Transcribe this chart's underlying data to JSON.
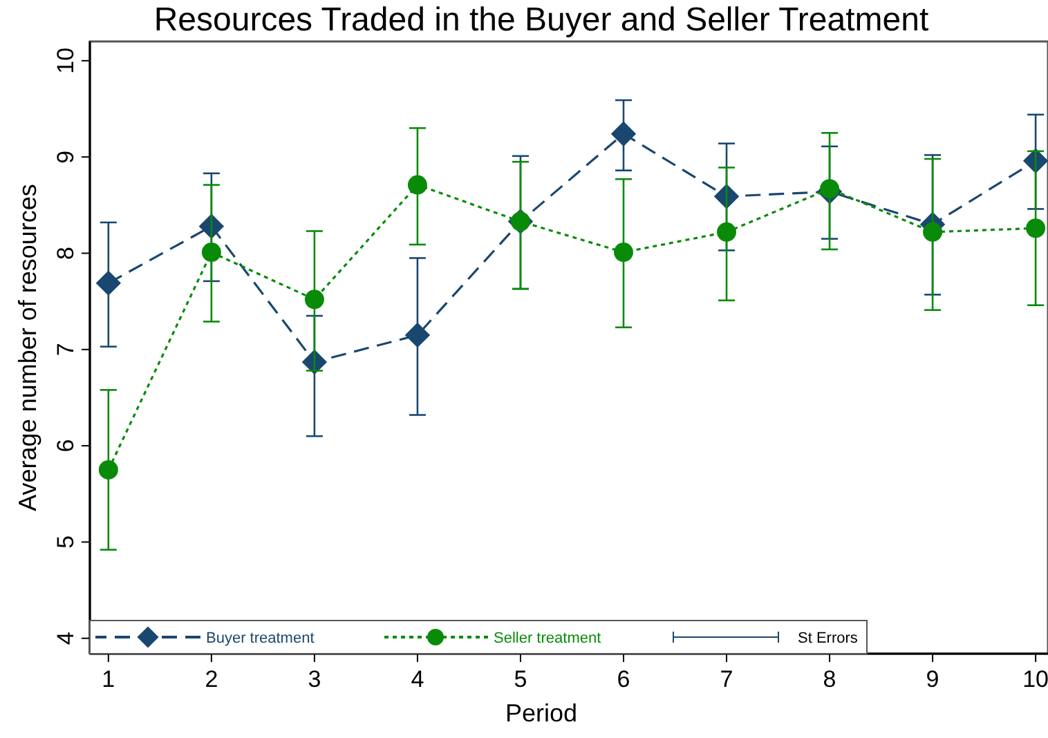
{
  "chart_data": {
    "type": "line",
    "title": "Resources Traded in the Buyer and Seller Treatment",
    "xlabel": "Period",
    "ylabel": "Average number of resources",
    "x": [
      1,
      2,
      3,
      4,
      5,
      6,
      7,
      8,
      9,
      10
    ],
    "series": [
      {
        "name": "Buyer treatment",
        "color": "#1a476f",
        "marker": "diamond",
        "line_style": "dashed",
        "values": [
          7.69,
          8.28,
          6.87,
          7.15,
          8.33,
          9.24,
          8.59,
          8.64,
          8.3,
          8.96
        ],
        "errors": [
          [
            7.03,
            8.32
          ],
          [
            7.71,
            8.83
          ],
          [
            6.1,
            7.35
          ],
          [
            6.32,
            7.95
          ],
          [
            7.63,
            9.01
          ],
          [
            8.86,
            9.59
          ],
          [
            8.03,
            9.14
          ],
          [
            8.15,
            9.11
          ],
          [
            7.57,
            9.02
          ],
          [
            8.46,
            9.44
          ]
        ]
      },
      {
        "name": "Seller treatment",
        "color": "#098b09",
        "marker": "circle",
        "line_style": "dotted",
        "values": [
          5.75,
          8.01,
          7.52,
          8.71,
          8.33,
          8.01,
          8.22,
          8.67,
          8.22,
          8.26
        ],
        "errors": [
          [
            4.92,
            6.58
          ],
          [
            7.29,
            8.71
          ],
          [
            6.78,
            8.23
          ],
          [
            8.09,
            9.3
          ],
          [
            7.63,
            8.95
          ],
          [
            7.23,
            8.77
          ],
          [
            7.51,
            8.89
          ],
          [
            8.04,
            9.25
          ],
          [
            7.41,
            8.98
          ],
          [
            7.46,
            9.06
          ]
        ]
      }
    ],
    "annotations": [
      "St Errors"
    ],
    "xlim": [
      0.82,
      10.12
    ],
    "ylim": [
      3.84,
      10.2
    ],
    "xticks": [
      1,
      2,
      3,
      4,
      5,
      6,
      7,
      8,
      9,
      10
    ],
    "yticks": [
      4,
      5,
      6,
      7,
      8,
      9,
      10
    ],
    "grid": false,
    "legend": "bottom"
  }
}
